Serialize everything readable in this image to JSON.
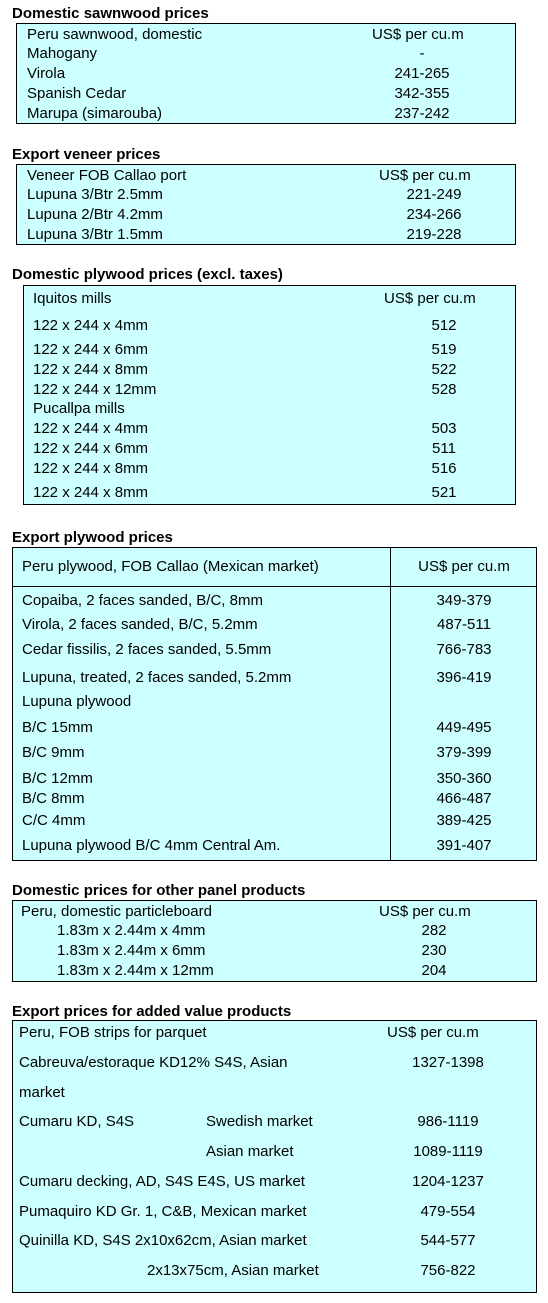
{
  "sawnwood": {
    "title": "Domestic sawnwood prices",
    "header": {
      "label": "Peru sawnwood, domestic",
      "unit": "US$ per cu.m"
    },
    "rows": [
      {
        "name": "Mahogany",
        "price": "-"
      },
      {
        "name": "Virola",
        "price": "241-265"
      },
      {
        "name": "Spanish Cedar",
        "price": "342-355"
      },
      {
        "name": "Marupa (simarouba)",
        "price": "237-242"
      }
    ]
  },
  "veneer": {
    "title": "Export veneer prices",
    "header": {
      "label": "Veneer  FOB Callao port",
      "unit": "US$ per cu.m"
    },
    "rows": [
      {
        "name": "Lupuna 3/Btr 2.5mm",
        "price": "221-249"
      },
      {
        "name": "Lupuna 2/Btr 4.2mm",
        "price": "234-266"
      },
      {
        "name": "Lupuna 3/Btr 1.5mm",
        "price": "219-228"
      }
    ]
  },
  "dom_plywood": {
    "title": "Domestic plywood prices (excl. taxes)",
    "header": {
      "label": "Iquitos mills",
      "unit": "US$ per cu.m"
    },
    "rows": [
      {
        "name": "122 x 244 x 4mm",
        "price": "512"
      },
      {
        "name": "122 x 244 x 6mm",
        "price": "519"
      },
      {
        "name": "122 x 244 x 8mm",
        "price": "522"
      },
      {
        "name": "122 x 244 x 12mm",
        "price": "528"
      },
      {
        "name": "Pucallpa mills",
        "price": ""
      },
      {
        "name": "122 x 244 x 4mm",
        "price": "503"
      },
      {
        "name": "122 x 244 x 6mm",
        "price": "511"
      },
      {
        "name": "122 x 244 x 8mm",
        "price": "516"
      },
      {
        "name": "122 x 244 x 8mm",
        "price": "521"
      }
    ]
  },
  "exp_plywood": {
    "title": "Export plywood prices",
    "header": {
      "label": "Peru plywood, FOB Callao (Mexican market)",
      "unit": "US$ per cu.m"
    },
    "rows": [
      {
        "name": "Copaiba, 2 faces sanded, B/C, 8mm",
        "price": "349-379"
      },
      {
        "name": "Virola, 2 faces sanded, B/C, 5.2mm",
        "price": "487-511"
      },
      {
        "name": "Cedar fissilis, 2 faces sanded, 5.5mm",
        "price": "766-783"
      },
      {
        "name": "Lupuna, treated, 2 faces sanded, 5.2mm",
        "price": "396-419"
      },
      {
        "name": "Lupuna plywood",
        "price": ""
      },
      {
        "name": "B/C 15mm",
        "price": "449-495"
      },
      {
        "name": "B/C 9mm",
        "price": "379-399"
      },
      {
        "name": "B/C 12mm",
        "price": "350-360"
      },
      {
        "name": "B/C 8mm",
        "price": "466-487"
      },
      {
        "name": "C/C 4mm",
        "price": "389-425"
      },
      {
        "name": "Lupuna plywood B/C 4mm Central Am.",
        "price": "391-407"
      }
    ]
  },
  "panel": {
    "title": "Domestic prices for other panel products",
    "header": {
      "label": "Peru, domestic particleboard",
      "unit": "US$ per cu.m"
    },
    "rows": [
      {
        "name": "1.83m x 2.44m x 4mm",
        "price": "282"
      },
      {
        "name": "1.83m x 2.44m x 6mm",
        "price": "230"
      },
      {
        "name": "1.83m x 2.44m x 12mm",
        "price": "204"
      }
    ]
  },
  "added": {
    "title": "Export prices for added value products",
    "header": {
      "label": "Peru, FOB strips for parquet",
      "unit": "US$ per cu.m"
    },
    "rows": [
      {
        "name": "Cabreuva/estoraque KD12% S4S, Asian",
        "market": "",
        "price": "1327-1398"
      },
      {
        "name": "market",
        "market": "",
        "price": ""
      },
      {
        "name": "Cumaru KD, S4S",
        "market": "Swedish market",
        "price": "986-1119"
      },
      {
        "name": "",
        "market": "Asian market",
        "price": "1089-1119"
      },
      {
        "name": "Cumaru decking, AD, S4S E4S,  US market",
        "market": "",
        "price": "1204-1237"
      },
      {
        "name": "Pumaquiro KD Gr. 1, C&B,  Mexican market",
        "market": "",
        "price": "479-554"
      },
      {
        "name": "Quinilla KD, S4S 2x10x62cm,  Asian market",
        "market": "",
        "price": "544-577"
      },
      {
        "name": "",
        "market": "2x13x75cm, Asian market",
        "price": "756-822"
      }
    ]
  }
}
